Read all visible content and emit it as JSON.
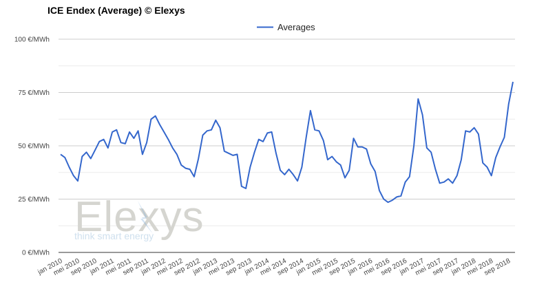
{
  "chart_data": {
    "type": "line",
    "title": "ICE Endex (Average) © Elexys",
    "legend": {
      "position": "top-center",
      "entries": [
        "Averages"
      ]
    },
    "watermark": {
      "brand": "Elexys",
      "tagline": "think smart energy"
    },
    "colors": {
      "series": "#3366cc",
      "grid": "#e0e0e0",
      "watermark": "#d5d5d0",
      "watermark_tagline": "#cfe0ee",
      "watermark_accent": "#7fb0e0"
    },
    "grid": true,
    "ylim": [
      0,
      100
    ],
    "yticks": [
      {
        "value": 0,
        "label": "0 €/MWh"
      },
      {
        "value": 25,
        "label": "25 €/MWh"
      },
      {
        "value": 50,
        "label": "50 €/MWh"
      },
      {
        "value": 75,
        "label": "75 €/MWh"
      },
      {
        "value": 100,
        "label": "100 €/MWh"
      }
    ],
    "xticks": [
      {
        "index": 0,
        "label": "jan 2010"
      },
      {
        "index": 4,
        "label": "mei 2010"
      },
      {
        "index": 8,
        "label": "sep 2010"
      },
      {
        "index": 12,
        "label": "jan 2011"
      },
      {
        "index": 16,
        "label": "mei 2011"
      },
      {
        "index": 20,
        "label": "sep 2011"
      },
      {
        "index": 24,
        "label": "jan 2012"
      },
      {
        "index": 28,
        "label": "mei 2012"
      },
      {
        "index": 32,
        "label": "sep 2012"
      },
      {
        "index": 36,
        "label": "jan 2013"
      },
      {
        "index": 40,
        "label": "mei 2013"
      },
      {
        "index": 44,
        "label": "sep 2013"
      },
      {
        "index": 48,
        "label": "jan 2014"
      },
      {
        "index": 52,
        "label": "mei 2014"
      },
      {
        "index": 56,
        "label": "sep 2014"
      },
      {
        "index": 60,
        "label": "jan 2015"
      },
      {
        "index": 64,
        "label": "mei 2015"
      },
      {
        "index": 68,
        "label": "sep 2015"
      },
      {
        "index": 72,
        "label": "jan 2016"
      },
      {
        "index": 76,
        "label": "mei 2016"
      },
      {
        "index": 80,
        "label": "sep 2016"
      },
      {
        "index": 84,
        "label": "jan 2017"
      },
      {
        "index": 88,
        "label": "mei 2017"
      },
      {
        "index": 92,
        "label": "sep 2017"
      },
      {
        "index": 96,
        "label": "jan 2018"
      },
      {
        "index": 100,
        "label": "mei 2018"
      },
      {
        "index": 104,
        "label": "sep 2018"
      }
    ],
    "series": [
      {
        "name": "Averages",
        "values": [
          46,
          44.5,
          40,
          36,
          33.5,
          45,
          47,
          44,
          48,
          52,
          53,
          49,
          56.5,
          57.5,
          51.5,
          51,
          56.5,
          53.5,
          57,
          46,
          51.5,
          62.5,
          64,
          60,
          56.5,
          53,
          49,
          46,
          41,
          39.5,
          39,
          35.5,
          44,
          55,
          57,
          57.5,
          62,
          58.5,
          47.5,
          46.5,
          45.5,
          46,
          31,
          30,
          40,
          47,
          53,
          52,
          56,
          56.5,
          46.5,
          38.5,
          36.5,
          39,
          36.5,
          33.5,
          40,
          54,
          66.5,
          57.5,
          57,
          52.5,
          43.5,
          45,
          42.5,
          41,
          35,
          38.5,
          53.5,
          49.5,
          49.5,
          48.5,
          41.5,
          38,
          29,
          25,
          23.5,
          24.5,
          26,
          26.5,
          33,
          35.5,
          50,
          72,
          64.5,
          49,
          47,
          39,
          32.5,
          33,
          34.5,
          32.5,
          36,
          43.5,
          57,
          56.5,
          58.5,
          55.5,
          42,
          40,
          36,
          44.5,
          49.5,
          54,
          69.5,
          80
        ]
      }
    ]
  }
}
